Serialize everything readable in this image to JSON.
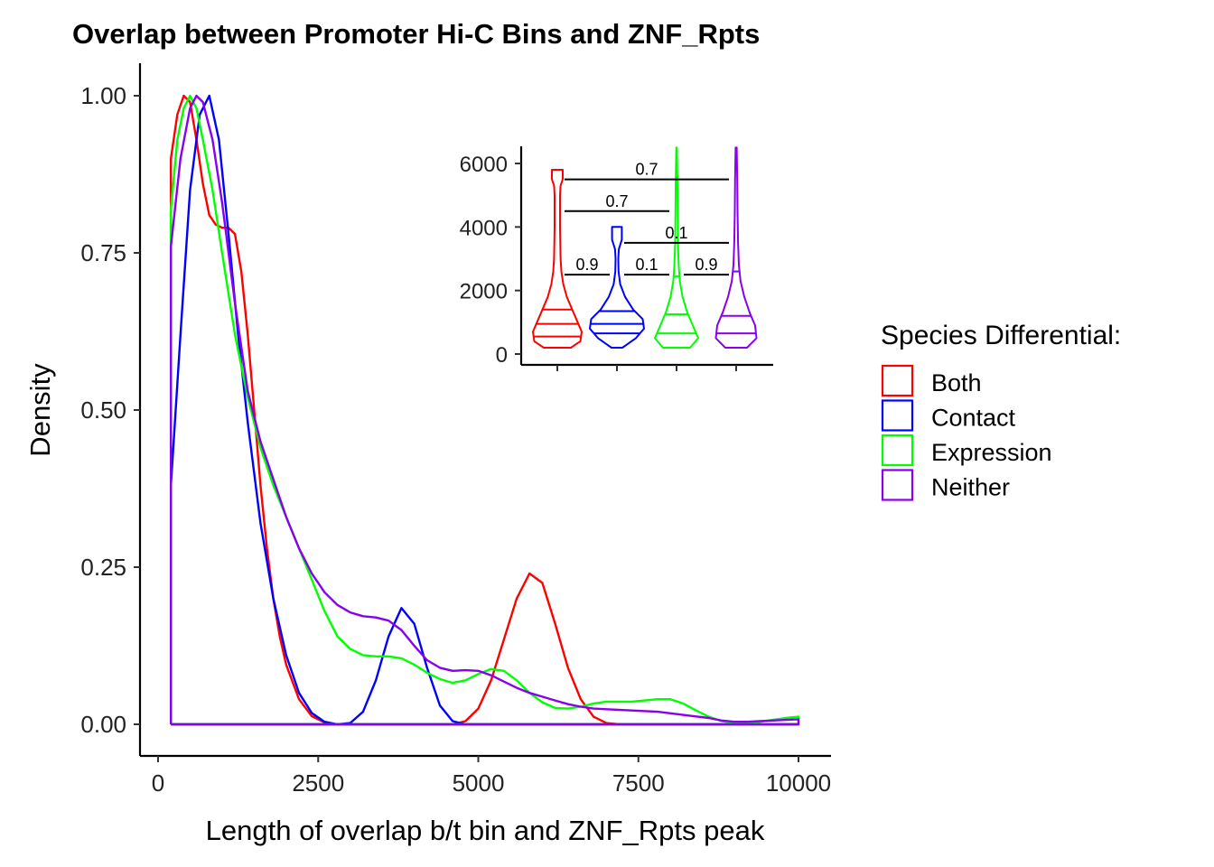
{
  "chart_data": [
    {
      "type": "line",
      "subtype": "density",
      "title": "Overlap between Promoter Hi-C Bins and ZNF_Rpts",
      "xlabel": "Length of overlap b/t bin and ZNF_Rpts peak",
      "ylabel": "Density",
      "xlim": [
        -300,
        10500
      ],
      "ylim": [
        -0.05,
        1.05
      ],
      "xticks": [
        0,
        2500,
        5000,
        7500,
        10000
      ],
      "xtick_labels": [
        "0",
        "2500",
        "5000",
        "7500",
        "10000"
      ],
      "yticks": [
        0,
        0.25,
        0.5,
        0.75,
        1.0
      ],
      "ytick_labels": [
        "0.00",
        "0.25",
        "0.50",
        "0.75",
        "1.00"
      ],
      "grid": false,
      "legend": {
        "title": "Species Differential:",
        "position": "right",
        "items": [
          "Both",
          "Contact",
          "Expression",
          "Neither"
        ]
      },
      "series": [
        {
          "name": "Both",
          "color": "#ff0000",
          "points": [
            [
              200,
              0
            ],
            [
              200,
              0.9
            ],
            [
              300,
              0.97
            ],
            [
              400,
              1.0
            ],
            [
              500,
              0.99
            ],
            [
              600,
              0.93
            ],
            [
              700,
              0.86
            ],
            [
              800,
              0.81
            ],
            [
              900,
              0.795
            ],
            [
              1000,
              0.79
            ],
            [
              1100,
              0.79
            ],
            [
              1200,
              0.78
            ],
            [
              1300,
              0.72
            ],
            [
              1400,
              0.62
            ],
            [
              1500,
              0.5
            ],
            [
              1600,
              0.38
            ],
            [
              1700,
              0.28
            ],
            [
              1800,
              0.2
            ],
            [
              1900,
              0.14
            ],
            [
              2000,
              0.095
            ],
            [
              2200,
              0.04
            ],
            [
              2400,
              0.013
            ],
            [
              2600,
              0.003
            ],
            [
              2800,
              0.0
            ],
            [
              4600,
              0.0
            ],
            [
              4800,
              0.005
            ],
            [
              5000,
              0.025
            ],
            [
              5200,
              0.07
            ],
            [
              5400,
              0.135
            ],
            [
              5600,
              0.2
            ],
            [
              5800,
              0.24
            ],
            [
              6000,
              0.225
            ],
            [
              6200,
              0.16
            ],
            [
              6400,
              0.09
            ],
            [
              6600,
              0.04
            ],
            [
              6800,
              0.012
            ],
            [
              7000,
              0.002
            ],
            [
              7200,
              0.0
            ],
            [
              10000,
              0.0
            ],
            [
              200,
              0.0
            ]
          ]
        },
        {
          "name": "Contact",
          "color": "#0000ff",
          "points": [
            [
              200,
              0
            ],
            [
              200,
              0.38
            ],
            [
              350,
              0.62
            ],
            [
              500,
              0.85
            ],
            [
              650,
              0.97
            ],
            [
              800,
              1.0
            ],
            [
              950,
              0.93
            ],
            [
              1100,
              0.78
            ],
            [
              1250,
              0.62
            ],
            [
              1400,
              0.48
            ],
            [
              1600,
              0.32
            ],
            [
              1800,
              0.2
            ],
            [
              2000,
              0.11
            ],
            [
              2200,
              0.05
            ],
            [
              2400,
              0.018
            ],
            [
              2600,
              0.004
            ],
            [
              2800,
              0.0
            ],
            [
              3000,
              0.002
            ],
            [
              3200,
              0.02
            ],
            [
              3400,
              0.07
            ],
            [
              3600,
              0.14
            ],
            [
              3800,
              0.185
            ],
            [
              4000,
              0.16
            ],
            [
              4200,
              0.09
            ],
            [
              4400,
              0.03
            ],
            [
              4600,
              0.005
            ],
            [
              4800,
              0.0
            ],
            [
              10000,
              0.0
            ],
            [
              200,
              0.0
            ]
          ]
        },
        {
          "name": "Expression",
          "color": "#00ff00",
          "points": [
            [
              200,
              0
            ],
            [
              200,
              0.82
            ],
            [
              300,
              0.93
            ],
            [
              400,
              0.98
            ],
            [
              500,
              1.0
            ],
            [
              600,
              0.98
            ],
            [
              700,
              0.93
            ],
            [
              850,
              0.85
            ],
            [
              1000,
              0.75
            ],
            [
              1200,
              0.62
            ],
            [
              1400,
              0.52
            ],
            [
              1600,
              0.44
            ],
            [
              1800,
              0.38
            ],
            [
              2000,
              0.33
            ],
            [
              2200,
              0.28
            ],
            [
              2400,
              0.23
            ],
            [
              2600,
              0.18
            ],
            [
              2800,
              0.14
            ],
            [
              3000,
              0.12
            ],
            [
              3200,
              0.11
            ],
            [
              3400,
              0.108
            ],
            [
              3600,
              0.108
            ],
            [
              3800,
              0.105
            ],
            [
              4000,
              0.095
            ],
            [
              4200,
              0.082
            ],
            [
              4400,
              0.072
            ],
            [
              4600,
              0.066
            ],
            [
              4800,
              0.07
            ],
            [
              5000,
              0.08
            ],
            [
              5200,
              0.088
            ],
            [
              5400,
              0.085
            ],
            [
              5600,
              0.07
            ],
            [
              5800,
              0.05
            ],
            [
              6000,
              0.035
            ],
            [
              6200,
              0.026
            ],
            [
              6400,
              0.025
            ],
            [
              6600,
              0.028
            ],
            [
              6800,
              0.033
            ],
            [
              7000,
              0.036
            ],
            [
              7400,
              0.036
            ],
            [
              7800,
              0.04
            ],
            [
              8000,
              0.04
            ],
            [
              8200,
              0.033
            ],
            [
              8400,
              0.022
            ],
            [
              8600,
              0.012
            ],
            [
              8800,
              0.005
            ],
            [
              9000,
              0.002
            ],
            [
              9200,
              0.002
            ],
            [
              9400,
              0.004
            ],
            [
              9600,
              0.007
            ],
            [
              9800,
              0.01
            ],
            [
              10000,
              0.012
            ],
            [
              10000,
              0.0
            ],
            [
              200,
              0.0
            ]
          ]
        },
        {
          "name": "Neither",
          "color": "#8800ee",
          "points": [
            [
              200,
              0
            ],
            [
              200,
              0.76
            ],
            [
              350,
              0.9
            ],
            [
              500,
              0.98
            ],
            [
              600,
              1.0
            ],
            [
              700,
              0.99
            ],
            [
              850,
              0.93
            ],
            [
              1000,
              0.83
            ],
            [
              1200,
              0.67
            ],
            [
              1400,
              0.53
            ],
            [
              1600,
              0.45
            ],
            [
              1800,
              0.39
            ],
            [
              2000,
              0.33
            ],
            [
              2200,
              0.28
            ],
            [
              2400,
              0.24
            ],
            [
              2600,
              0.21
            ],
            [
              2800,
              0.19
            ],
            [
              3000,
              0.178
            ],
            [
              3200,
              0.172
            ],
            [
              3400,
              0.17
            ],
            [
              3600,
              0.165
            ],
            [
              3800,
              0.15
            ],
            [
              4000,
              0.125
            ],
            [
              4200,
              0.102
            ],
            [
              4400,
              0.09
            ],
            [
              4600,
              0.085
            ],
            [
              4800,
              0.086
            ],
            [
              5000,
              0.085
            ],
            [
              5200,
              0.078
            ],
            [
              5400,
              0.068
            ],
            [
              5600,
              0.058
            ],
            [
              5800,
              0.05
            ],
            [
              6000,
              0.044
            ],
            [
              6200,
              0.038
            ],
            [
              6400,
              0.032
            ],
            [
              6600,
              0.028
            ],
            [
              6800,
              0.025
            ],
            [
              7000,
              0.024
            ],
            [
              7400,
              0.022
            ],
            [
              7800,
              0.02
            ],
            [
              8200,
              0.015
            ],
            [
              8600,
              0.01
            ],
            [
              8800,
              0.006
            ],
            [
              9000,
              0.004
            ],
            [
              9200,
              0.004
            ],
            [
              9400,
              0.005
            ],
            [
              9600,
              0.006
            ],
            [
              9800,
              0.007
            ],
            [
              10000,
              0.008
            ],
            [
              10000,
              0.0
            ],
            [
              200,
              0.0
            ]
          ]
        }
      ]
    },
    {
      "type": "violin",
      "title": "",
      "xlabel": "",
      "ylabel": "",
      "ylim": [
        -300,
        6500
      ],
      "yticks": [
        0,
        2000,
        4000,
        6000
      ],
      "ytick_labels": [
        "0",
        "2000",
        "4000",
        "6000"
      ],
      "categories": [
        "Both",
        "Contact",
        "Expression",
        "Neither"
      ],
      "series": [
        {
          "name": "Both",
          "color": "#ff0000",
          "quantiles": [
            550,
            950,
            1400
          ],
          "profile": [
            [
              200,
              0.5
            ],
            [
              400,
              0.85
            ],
            [
              700,
              0.9
            ],
            [
              1000,
              0.75
            ],
            [
              1400,
              0.55
            ],
            [
              1800,
              0.35
            ],
            [
              2200,
              0.22
            ],
            [
              2600,
              0.15
            ],
            [
              3000,
              0.12
            ],
            [
              4000,
              0.1
            ],
            [
              5000,
              0.1
            ],
            [
              5300,
              0.12
            ],
            [
              5500,
              0.2
            ],
            [
              5800,
              0.2
            ]
          ]
        },
        {
          "name": "Contact",
          "color": "#0000ff",
          "quantiles": [
            650,
            950,
            1350
          ],
          "profile": [
            [
              200,
              0.2
            ],
            [
              500,
              0.7
            ],
            [
              800,
              1.0
            ],
            [
              1100,
              0.95
            ],
            [
              1400,
              0.6
            ],
            [
              1800,
              0.3
            ],
            [
              2200,
              0.12
            ],
            [
              2600,
              0.06
            ],
            [
              3000,
              0.05
            ],
            [
              3300,
              0.07
            ],
            [
              3600,
              0.18
            ],
            [
              4000,
              0.18
            ]
          ]
        },
        {
          "name": "Expression",
          "color": "#00ff00",
          "quantiles": [
            650,
            1250,
            2450
          ],
          "profile": [
            [
              200,
              0.5
            ],
            [
              500,
              0.8
            ],
            [
              900,
              0.6
            ],
            [
              1300,
              0.4
            ],
            [
              1800,
              0.22
            ],
            [
              2300,
              0.12
            ],
            [
              2800,
              0.08
            ],
            [
              3500,
              0.05
            ],
            [
              4500,
              0.04
            ],
            [
              5500,
              0.03
            ],
            [
              6500,
              0.01
            ]
          ]
        },
        {
          "name": "Neither",
          "color": "#8800ee",
          "quantiles": [
            650,
            1200,
            2600
          ],
          "profile": [
            [
              200,
              0.4
            ],
            [
              500,
              0.75
            ],
            [
              900,
              0.7
            ],
            [
              1300,
              0.5
            ],
            [
              1800,
              0.3
            ],
            [
              2300,
              0.16
            ],
            [
              2800,
              0.1
            ],
            [
              3500,
              0.07
            ],
            [
              4500,
              0.05
            ],
            [
              5500,
              0.04
            ],
            [
              6500,
              0.02
            ]
          ]
        }
      ],
      "comparisons": [
        {
          "groups": [
            "Both",
            "Contact"
          ],
          "y": 2500,
          "label": "0.9"
        },
        {
          "groups": [
            "Contact",
            "Expression"
          ],
          "y": 2500,
          "label": "0.1"
        },
        {
          "groups": [
            "Expression",
            "Neither"
          ],
          "y": 2500,
          "label": "0.9"
        },
        {
          "groups": [
            "Contact",
            "Neither"
          ],
          "y": 3500,
          "label": "0.1"
        },
        {
          "groups": [
            "Both",
            "Expression"
          ],
          "y": 4500,
          "label": "0.7"
        },
        {
          "groups": [
            "Both",
            "Neither"
          ],
          "y": 5500,
          "label": "0.7"
        }
      ]
    }
  ]
}
